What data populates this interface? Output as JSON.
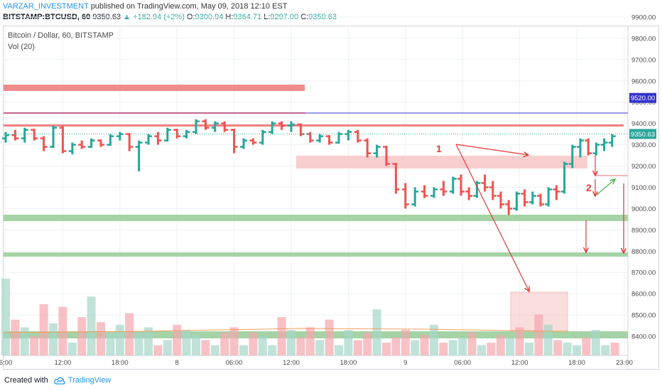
{
  "header": {
    "author": "VARZAR_INVESTMENT",
    "published": "published on TradingView.com, May 09, 2018 12:10 EST"
  },
  "ohlc": {
    "symbol": "BITSTAMP:BTCUSD, 60",
    "last": "9350.63",
    "change": "▲ +182.94 (+2%)",
    "o_label": "O:",
    "o": "9300.94",
    "h_label": "H:",
    "h": "9364.71",
    "l_label": "L:",
    "l": "9297.00",
    "c_label": "C:",
    "c": "9350.63"
  },
  "legend": {
    "title": "Bitcoin / Dollar, 60, BITSTAMP",
    "volume": "Vol (20)"
  },
  "footer": {
    "created": "Created with",
    "brand": "TradingView"
  },
  "colors": {
    "up": "#26a69a",
    "down": "#ef5350",
    "accent": "#2196f3",
    "resistance": "#f08080",
    "support": "#8fc88f",
    "level_line": "#3333cc",
    "arrow": "#e53935",
    "arrow_green": "#4caf50"
  },
  "chart_data": {
    "type": "ohlc",
    "ylim": [
      8320,
      9960
    ],
    "y_ticks": [
      "9900.00",
      "9800.00",
      "9700.00",
      "9600.00",
      "9500.00",
      "9400.00",
      "9300.00",
      "9200.00",
      "9100.00",
      "9000.00",
      "8900.00",
      "8800.00",
      "8700.00",
      "8600.00",
      "8500.00",
      "8400.00"
    ],
    "x_ticks": [
      {
        "label": "6:00",
        "i": 0
      },
      {
        "label": "12:00",
        "i": 6
      },
      {
        "label": "18:00",
        "i": 12
      },
      {
        "label": "8",
        "i": 18
      },
      {
        "label": "06:00",
        "i": 24
      },
      {
        "label": "12:00",
        "i": 30
      },
      {
        "label": "18:00",
        "i": 36
      },
      {
        "label": "9",
        "i": 42
      },
      {
        "label": "06:00",
        "i": 48
      },
      {
        "label": "12:00",
        "i": 54
      },
      {
        "label": "18:00",
        "i": 60
      },
      {
        "label": "23:00",
        "i": 65
      }
    ],
    "last_price": "9350.63",
    "level_label": "9520.00",
    "bars": [
      {
        "o": 9330,
        "h": 9360,
        "l": 9310,
        "c": 9345
      },
      {
        "o": 9345,
        "h": 9370,
        "l": 9320,
        "c": 9330
      },
      {
        "o": 9330,
        "h": 9380,
        "l": 9310,
        "c": 9370
      },
      {
        "o": 9370,
        "h": 9375,
        "l": 9320,
        "c": 9330
      },
      {
        "o": 9330,
        "h": 9340,
        "l": 9270,
        "c": 9290
      },
      {
        "o": 9290,
        "h": 9390,
        "l": 9285,
        "c": 9380
      },
      {
        "o": 9380,
        "h": 9390,
        "l": 9260,
        "c": 9270
      },
      {
        "o": 9270,
        "h": 9310,
        "l": 9255,
        "c": 9300
      },
      {
        "o": 9300,
        "h": 9320,
        "l": 9280,
        "c": 9290
      },
      {
        "o": 9290,
        "h": 9330,
        "l": 9285,
        "c": 9320
      },
      {
        "o": 9320,
        "h": 9325,
        "l": 9290,
        "c": 9300
      },
      {
        "o": 9300,
        "h": 9350,
        "l": 9295,
        "c": 9340
      },
      {
        "o": 9340,
        "h": 9360,
        "l": 9320,
        "c": 9350
      },
      {
        "o": 9350,
        "h": 9355,
        "l": 9270,
        "c": 9290
      },
      {
        "o": 9290,
        "h": 9320,
        "l": 9175,
        "c": 9310
      },
      {
        "o": 9310,
        "h": 9350,
        "l": 9300,
        "c": 9340
      },
      {
        "o": 9340,
        "h": 9360,
        "l": 9300,
        "c": 9320
      },
      {
        "o": 9320,
        "h": 9380,
        "l": 9315,
        "c": 9370
      },
      {
        "o": 9370,
        "h": 9375,
        "l": 9330,
        "c": 9340
      },
      {
        "o": 9340,
        "h": 9370,
        "l": 9330,
        "c": 9360
      },
      {
        "o": 9360,
        "h": 9420,
        "l": 9350,
        "c": 9410
      },
      {
        "o": 9410,
        "h": 9420,
        "l": 9370,
        "c": 9380
      },
      {
        "o": 9380,
        "h": 9410,
        "l": 9360,
        "c": 9400
      },
      {
        "o": 9400,
        "h": 9410,
        "l": 9360,
        "c": 9370
      },
      {
        "o": 9370,
        "h": 9375,
        "l": 9260,
        "c": 9290
      },
      {
        "o": 9290,
        "h": 9330,
        "l": 9280,
        "c": 9320
      },
      {
        "o": 9320,
        "h": 9330,
        "l": 9300,
        "c": 9310
      },
      {
        "o": 9310,
        "h": 9370,
        "l": 9300,
        "c": 9360
      },
      {
        "o": 9360,
        "h": 9410,
        "l": 9350,
        "c": 9400
      },
      {
        "o": 9400,
        "h": 9410,
        "l": 9370,
        "c": 9390
      },
      {
        "o": 9390,
        "h": 9410,
        "l": 9360,
        "c": 9395
      },
      {
        "o": 9395,
        "h": 9400,
        "l": 9340,
        "c": 9350
      },
      {
        "o": 9350,
        "h": 9360,
        "l": 9310,
        "c": 9320
      },
      {
        "o": 9320,
        "h": 9350,
        "l": 9310,
        "c": 9340
      },
      {
        "o": 9340,
        "h": 9345,
        "l": 9300,
        "c": 9310
      },
      {
        "o": 9310,
        "h": 9360,
        "l": 9305,
        "c": 9350
      },
      {
        "o": 9350,
        "h": 9370,
        "l": 9320,
        "c": 9360
      },
      {
        "o": 9360,
        "h": 9370,
        "l": 9310,
        "c": 9320
      },
      {
        "o": 9320,
        "h": 9330,
        "l": 9240,
        "c": 9260
      },
      {
        "o": 9260,
        "h": 9300,
        "l": 9240,
        "c": 9290
      },
      {
        "o": 9290,
        "h": 9295,
        "l": 9200,
        "c": 9210
      },
      {
        "o": 9210,
        "h": 9215,
        "l": 9070,
        "c": 9090
      },
      {
        "o": 9090,
        "h": 9120,
        "l": 9000,
        "c": 9020
      },
      {
        "o": 9020,
        "h": 9100,
        "l": 9010,
        "c": 9080
      },
      {
        "o": 9080,
        "h": 9110,
        "l": 9050,
        "c": 9060
      },
      {
        "o": 9060,
        "h": 9100,
        "l": 9050,
        "c": 9090
      },
      {
        "o": 9090,
        "h": 9130,
        "l": 9060,
        "c": 9080
      },
      {
        "o": 9080,
        "h": 9150,
        "l": 9070,
        "c": 9140
      }
    ]
  }
}
